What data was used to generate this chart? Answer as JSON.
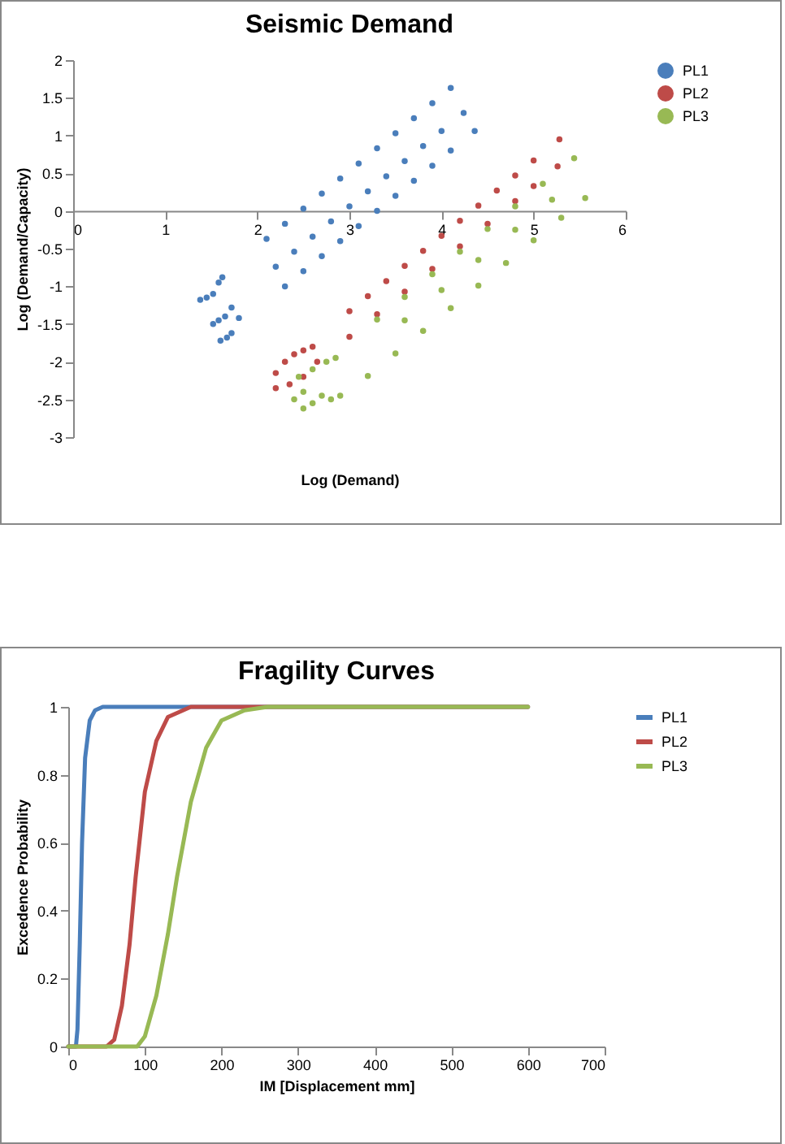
{
  "chart_data": [
    {
      "type": "scatter",
      "title": "Seismic Demand",
      "xlabel": "Log (Demand)",
      "ylabel": "Log (Demand/Capacity)",
      "xlim": [
        0,
        6
      ],
      "xticks": [
        0,
        1,
        2,
        3,
        4,
        5,
        6
      ],
      "ylim": [
        -3,
        2
      ],
      "yticks": [
        -3,
        -2.5,
        -2,
        -1.5,
        -1,
        -0.5,
        0,
        0.5,
        1,
        1.5,
        2
      ],
      "legend": "right",
      "marker": "circle",
      "series": [
        {
          "name": "PL1",
          "color": "#4a7ebb",
          "x": [
            1.38,
            1.45,
            1.52,
            1.58,
            1.62,
            1.52,
            1.58,
            1.65,
            1.72,
            1.8,
            1.6,
            1.67,
            1.72,
            2.1,
            2.3,
            2.5,
            2.7,
            2.9,
            3.1,
            3.3,
            3.5,
            3.7,
            3.9,
            4.1,
            2.2,
            2.4,
            2.6,
            2.8,
            3.0,
            3.2,
            3.4,
            3.6,
            3.8,
            4.0,
            4.24,
            2.3,
            2.5,
            2.7,
            2.9,
            3.1,
            3.3,
            3.5,
            3.7,
            3.9,
            4.1,
            4.36
          ],
          "values": [
            -1.18,
            -1.15,
            -1.1,
            -0.95,
            -0.88,
            -1.5,
            -1.45,
            -1.4,
            -1.28,
            -1.42,
            -1.72,
            -1.68,
            -1.62,
            -0.37,
            -0.17,
            0.03,
            0.23,
            0.43,
            0.63,
            0.83,
            1.03,
            1.23,
            1.43,
            1.63,
            -0.74,
            -0.54,
            -0.34,
            -0.14,
            0.06,
            0.26,
            0.46,
            0.66,
            0.86,
            1.06,
            1.3,
            -1.0,
            -0.8,
            -0.6,
            -0.4,
            -0.2,
            0,
            0.2,
            0.4,
            0.6,
            0.8,
            1.06
          ]
        },
        {
          "name": "PL2",
          "color": "#be4b48",
          "x": [
            2.2,
            2.3,
            2.4,
            2.5,
            2.6,
            2.2,
            2.35,
            2.5,
            2.65,
            3.0,
            3.2,
            3.4,
            3.6,
            3.8,
            4.0,
            4.2,
            4.4,
            4.6,
            4.8,
            5.0,
            5.28,
            3.0,
            3.3,
            3.6,
            3.9,
            4.2,
            4.5,
            4.8,
            5.0,
            5.26
          ],
          "values": [
            -2.15,
            -2.0,
            -1.9,
            -1.85,
            -1.8,
            -2.35,
            -2.3,
            -2.2,
            -2.0,
            -1.33,
            -1.13,
            -0.93,
            -0.73,
            -0.53,
            -0.33,
            -0.13,
            0.07,
            0.27,
            0.47,
            0.67,
            0.95,
            -1.67,
            -1.37,
            -1.07,
            -0.77,
            -0.47,
            -0.17,
            0.13,
            0.33,
            0.59
          ]
        },
        {
          "name": "PL3",
          "color": "#98b954",
          "x": [
            2.4,
            2.5,
            2.6,
            2.7,
            2.8,
            2.9,
            2.45,
            2.6,
            2.75,
            2.85,
            2.5,
            3.3,
            3.6,
            3.9,
            4.2,
            4.5,
            4.8,
            5.1,
            5.44,
            3.2,
            3.5,
            3.8,
            4.1,
            4.4,
            4.7,
            5.0,
            5.3,
            5.56,
            3.6,
            4.0,
            4.4,
            4.8,
            5.2
          ],
          "values": [
            -2.5,
            -2.4,
            -2.55,
            -2.45,
            -2.5,
            -2.45,
            -2.2,
            -2.1,
            -2.0,
            -1.95,
            -2.62,
            -1.44,
            -1.14,
            -0.84,
            -0.54,
            -0.24,
            0.06,
            0.36,
            0.7,
            -2.19,
            -1.89,
            -1.59,
            -1.29,
            -0.99,
            -0.69,
            -0.39,
            -0.09,
            0.17,
            -1.45,
            -1.05,
            -0.65,
            -0.25,
            0.15
          ]
        }
      ]
    },
    {
      "type": "line",
      "title": "Fragility Curves",
      "xlabel": "IM [Displacement mm]",
      "ylabel": "Excedence Probability",
      "xlim": [
        0,
        700
      ],
      "xticks": [
        0,
        100,
        200,
        300,
        400,
        500,
        600,
        700
      ],
      "ylim": [
        0,
        1
      ],
      "yticks": [
        0,
        0.2,
        0.4,
        0.6,
        0.8,
        1
      ],
      "legend": "right",
      "series": [
        {
          "name": "PL1",
          "color": "#4a7ebb",
          "x": [
            0,
            10,
            12,
            15,
            18,
            22,
            28,
            35,
            45,
            600
          ],
          "values": [
            0,
            0,
            0.05,
            0.3,
            0.6,
            0.85,
            0.96,
            0.99,
            1,
            1
          ]
        },
        {
          "name": "PL2",
          "color": "#be4b48",
          "x": [
            0,
            50,
            60,
            70,
            80,
            88,
            100,
            115,
            130,
            160,
            600
          ],
          "values": [
            0,
            0,
            0.02,
            0.12,
            0.3,
            0.5,
            0.75,
            0.9,
            0.97,
            1,
            1
          ]
        },
        {
          "name": "PL3",
          "color": "#98b954",
          "x": [
            0,
            90,
            100,
            115,
            130,
            142,
            160,
            180,
            200,
            230,
            260,
            600
          ],
          "values": [
            0,
            0,
            0.03,
            0.15,
            0.33,
            0.5,
            0.72,
            0.88,
            0.96,
            0.99,
            1,
            1
          ]
        }
      ]
    }
  ]
}
